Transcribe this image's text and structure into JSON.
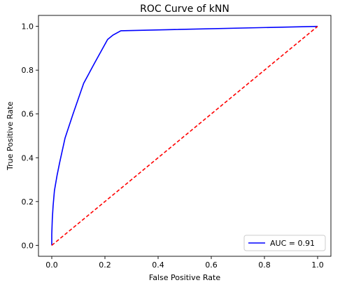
{
  "chart_data": {
    "type": "line",
    "title": "ROC Curve of kNN",
    "xlabel": "False Positive Rate",
    "ylabel": "True Positive Rate",
    "xlim": [
      -0.05,
      1.05
    ],
    "ylim": [
      -0.05,
      1.05
    ],
    "xticks": [
      "0.0",
      "0.2",
      "0.4",
      "0.6",
      "0.8",
      "1.0"
    ],
    "yticks": [
      "0.0",
      "0.2",
      "0.4",
      "0.6",
      "0.8",
      "1.0"
    ],
    "grid": false,
    "legend_position": "bottom-right",
    "series": [
      {
        "name": "AUC = 0.91",
        "color": "#0000ff",
        "style": "solid",
        "x": [
          0.0,
          0.0,
          0.002,
          0.005,
          0.01,
          0.02,
          0.03,
          0.05,
          0.08,
          0.12,
          0.16,
          0.21,
          0.23,
          0.26,
          1.0
        ],
        "y": [
          0.0,
          0.05,
          0.12,
          0.18,
          0.25,
          0.32,
          0.38,
          0.49,
          0.6,
          0.74,
          0.83,
          0.94,
          0.96,
          0.98,
          1.0
        ]
      },
      {
        "color": "#ff0000",
        "style": "dashed",
        "x": [
          0.0,
          1.0
        ],
        "y": [
          0.0,
          1.0
        ]
      }
    ]
  }
}
